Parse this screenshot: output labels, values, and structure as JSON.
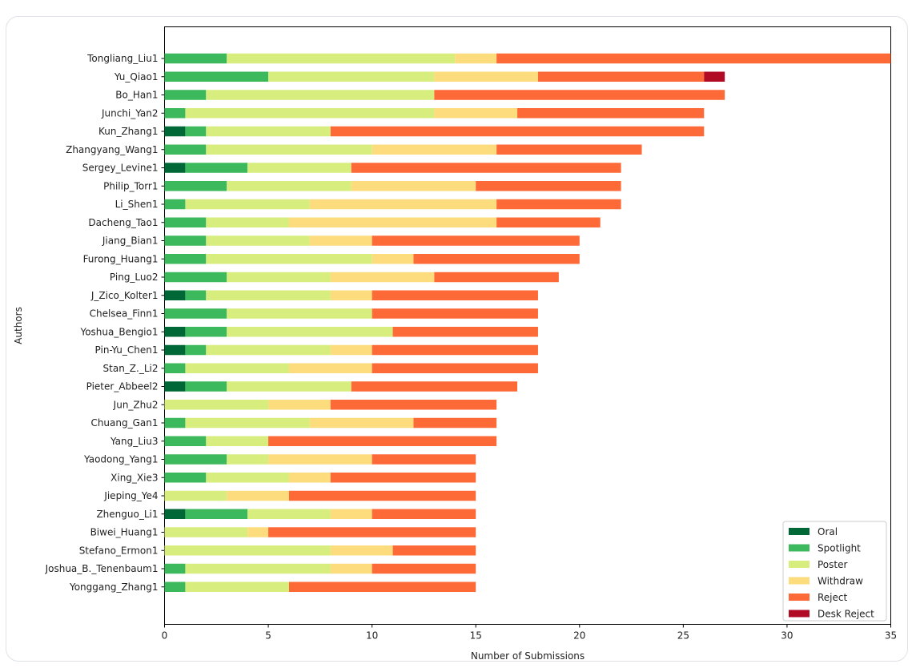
{
  "chart_data": {
    "type": "bar",
    "orientation": "horizontal",
    "stacked": true,
    "xlabel": "Number of Submissions",
    "ylabel": "Authors",
    "xlim": [
      0,
      35
    ],
    "xticks": [
      0,
      5,
      10,
      15,
      20,
      25,
      30,
      35
    ],
    "legend_position": "bottom-right",
    "categories": [
      "Tongliang_Liu1",
      "Yu_Qiao1",
      "Bo_Han1",
      "Junchi_Yan2",
      "Kun_Zhang1",
      "Zhangyang_Wang1",
      "Sergey_Levine1",
      "Philip_Torr1",
      "Li_Shen1",
      "Dacheng_Tao1",
      "Jiang_Bian1",
      "Furong_Huang1",
      "Ping_Luo2",
      "J_Zico_Kolter1",
      "Chelsea_Finn1",
      "Yoshua_Bengio1",
      "Pin-Yu_Chen1",
      "Stan_Z._Li2",
      "Pieter_Abbeel2",
      "Jun_Zhu2",
      "Chuang_Gan1",
      "Yang_Liu3",
      "Yaodong_Yang1",
      "Xing_Xie3",
      "Jieping_Ye4",
      "Zhenguo_Li1",
      "Biwei_Huang1",
      "Stefano_Ermon1",
      "Joshua_B._Tenenbaum1",
      "Yonggang_Zhang1"
    ],
    "series": [
      {
        "name": "Oral",
        "color": "#006837",
        "values": [
          0,
          0,
          0,
          0,
          1,
          0,
          1,
          0,
          0,
          0,
          0,
          0,
          0,
          1,
          0,
          1,
          1,
          0,
          1,
          0,
          0,
          0,
          0,
          0,
          0,
          1,
          0,
          0,
          0,
          0
        ]
      },
      {
        "name": "Spotlight",
        "color": "#3cb95c",
        "values": [
          3,
          5,
          2,
          1,
          1,
          2,
          3,
          3,
          1,
          2,
          2,
          2,
          3,
          1,
          3,
          2,
          1,
          1,
          2,
          0,
          1,
          2,
          3,
          2,
          0,
          3,
          0,
          0,
          1,
          1
        ]
      },
      {
        "name": "Poster",
        "color": "#d7ee7f",
        "values": [
          11,
          8,
          11,
          12,
          6,
          8,
          5,
          6,
          6,
          4,
          5,
          8,
          5,
          6,
          7,
          8,
          6,
          5,
          6,
          5,
          6,
          3,
          2,
          4,
          3,
          4,
          4,
          8,
          7,
          5
        ]
      },
      {
        "name": "Withdraw",
        "color": "#fddc7e",
        "values": [
          2,
          5,
          0,
          4,
          0,
          6,
          0,
          6,
          9,
          10,
          3,
          2,
          5,
          2,
          0,
          0,
          2,
          4,
          0,
          3,
          5,
          0,
          5,
          2,
          3,
          2,
          1,
          3,
          2,
          0
        ]
      },
      {
        "name": "Reject",
        "color": "#fd6a38",
        "values": [
          19,
          8,
          14,
          9,
          18,
          7,
          13,
          7,
          6,
          5,
          10,
          8,
          6,
          8,
          8,
          7,
          8,
          8,
          8,
          8,
          4,
          11,
          5,
          7,
          9,
          5,
          10,
          4,
          5,
          9
        ]
      },
      {
        "name": "Desk Reject",
        "color": "#b00a24",
        "values": [
          0,
          1,
          0,
          0,
          0,
          0,
          0,
          0,
          0,
          0,
          0,
          0,
          0,
          0,
          0,
          0,
          0,
          0,
          0,
          0,
          0,
          0,
          0,
          0,
          0,
          0,
          0,
          0,
          0,
          0
        ]
      }
    ]
  }
}
